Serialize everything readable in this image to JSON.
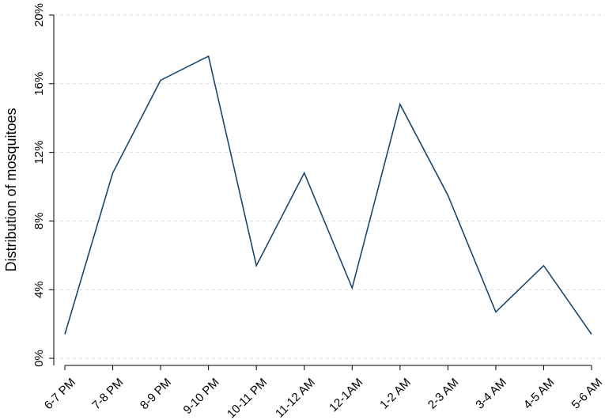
{
  "chart_data": {
    "type": "line",
    "ylabel": "Distribution of mosquitoes",
    "categories": [
      "6-7 PM",
      "7-8 PM",
      "8-9 PM",
      "9-10 PM",
      "10-11 PM",
      "11-12 AM",
      "12-1AM",
      "1-2 AM",
      "2-3 AM",
      "3-4 AM",
      "4-5 AM",
      "5-6 AM"
    ],
    "values": [
      1.4,
      10.8,
      16.2,
      17.6,
      5.4,
      10.8,
      4.1,
      14.8,
      9.5,
      2.7,
      5.4,
      1.4
    ],
    "color": "#1a476f",
    "ylim": [
      0,
      20
    ],
    "yticks": [
      {
        "value": 0,
        "label": "0%"
      },
      {
        "value": 4,
        "label": "4%"
      },
      {
        "value": 8,
        "label": "8%"
      },
      {
        "value": 12,
        "label": "12%"
      },
      {
        "value": 16,
        "label": "16%"
      },
      {
        "value": 20,
        "label": "20%"
      }
    ],
    "grid": true
  }
}
